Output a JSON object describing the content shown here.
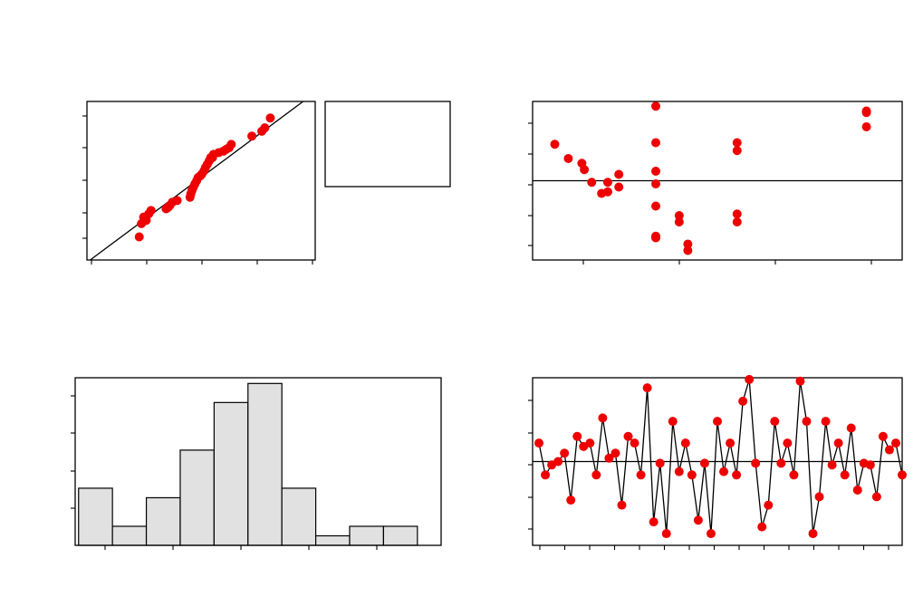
{
  "colors": {
    "point": "#ee0000",
    "bar": "#e1e1e1",
    "line": "#000000"
  },
  "chart_data": [
    {
      "id": "normal-probability",
      "type": "scatter",
      "title": "",
      "xlabel": "",
      "ylabel": "",
      "xlim": [
        -3.1,
        3.1
      ],
      "ylim": [
        -2.5,
        2.3
      ],
      "reference_line": {
        "slope": 0.83,
        "intercept": 0.0
      },
      "x": [
        -1.68,
        -1.62,
        -1.56,
        -1.49,
        -1.42,
        -1.36,
        -0.95,
        -0.89,
        -0.85,
        -0.78,
        -0.65,
        -0.3,
        -0.28,
        -0.25,
        -0.21,
        -0.17,
        -0.12,
        -0.08,
        -0.02,
        0.02,
        0.08,
        0.12,
        0.17,
        0.22,
        0.26,
        0.31,
        0.34,
        0.48,
        0.61,
        0.68,
        0.76,
        0.82,
        1.38,
        1.65,
        1.73,
        1.88
      ],
      "y": [
        -1.8,
        -1.4,
        -1.2,
        -1.3,
        -1.1,
        -1.0,
        -0.95,
        -0.9,
        -0.85,
        -0.75,
        -0.7,
        -0.6,
        -0.5,
        -0.4,
        -0.3,
        -0.2,
        -0.1,
        0.0,
        0.05,
        0.1,
        0.2,
        0.3,
        0.4,
        0.5,
        0.6,
        0.6,
        0.7,
        0.75,
        0.8,
        0.85,
        0.9,
        1.0,
        1.25,
        1.4,
        1.5,
        1.8
      ],
      "note_box": true
    },
    {
      "id": "residuals-vs-fit",
      "type": "scatter",
      "title": "",
      "xlabel": "",
      "ylabel": "",
      "xlim": [
        0,
        15
      ],
      "ylim": [
        -2.5,
        2.5
      ],
      "reference_line": {
        "y": 0
      },
      "x": [
        0.9,
        1.45,
        2.0,
        2.1,
        2.4,
        2.8,
        3.05,
        3.05,
        3.5,
        3.5,
        5.0,
        5.0,
        5.0,
        5.0,
        5.0,
        5.0,
        5.0,
        5.95,
        5.95,
        6.3,
        6.3,
        8.3,
        8.3,
        8.3,
        8.3,
        13.55,
        13.55,
        13.55
      ],
      "y": [
        1.15,
        0.7,
        0.55,
        0.35,
        -0.05,
        -0.4,
        -0.05,
        -0.35,
        0.2,
        -0.2,
        2.35,
        1.2,
        0.3,
        -0.1,
        -0.8,
        -1.8,
        -1.75,
        -1.1,
        -1.3,
        -2.0,
        -2.2,
        1.2,
        0.95,
        -1.05,
        -1.3,
        2.2,
        2.15,
        1.7
      ],
      "note_box": false
    },
    {
      "id": "histogram",
      "type": "bar",
      "title": "",
      "xlabel": "",
      "ylabel": "",
      "xlim": [
        -1.8,
        3.6
      ],
      "ylim": [
        0,
        8.8
      ],
      "bin_start": -1.75,
      "bin_width": 0.5,
      "values": [
        3,
        1,
        2.5,
        5,
        7.5,
        8.5,
        3,
        0.5,
        1,
        1
      ]
    },
    {
      "id": "residuals-vs-order",
      "type": "line",
      "title": "",
      "xlabel": "",
      "ylabel": "",
      "xlim": [
        0,
        58
      ],
      "ylim": [
        -2.5,
        2.5
      ],
      "reference_line": {
        "y": 0
      },
      "x": [
        1,
        2,
        3,
        4,
        5,
        6,
        7,
        8,
        9,
        10,
        11,
        12,
        13,
        14,
        15,
        16,
        17,
        18,
        19,
        20,
        21,
        22,
        23,
        24,
        25,
        26,
        27,
        28,
        29,
        30,
        31,
        32,
        33,
        34,
        35,
        36,
        37,
        38,
        39,
        40,
        41,
        42,
        43,
        44,
        45,
        46,
        47,
        48,
        49,
        50,
        51,
        52,
        53,
        54,
        55,
        56,
        57,
        58
      ],
      "y": [
        0.55,
        -0.4,
        -0.1,
        0.0,
        0.25,
        -1.15,
        0.75,
        0.45,
        0.55,
        -0.4,
        1.3,
        0.1,
        0.25,
        -1.3,
        0.75,
        0.55,
        -0.4,
        2.2,
        -1.8,
        -0.05,
        -2.15,
        1.2,
        -0.3,
        0.55,
        -0.4,
        -1.75,
        -0.05,
        -2.15,
        1.2,
        -0.3,
        0.55,
        -0.4,
        1.8,
        2.45,
        -0.05,
        -1.95,
        -1.3,
        1.2,
        -0.05,
        0.55,
        -0.4,
        2.4,
        1.2,
        -2.15,
        -1.05,
        1.2,
        -0.1,
        0.55,
        -0.4,
        1.0,
        -0.85,
        -0.05,
        -0.1,
        -1.05,
        0.75,
        0.35,
        0.55,
        -0.4
      ],
      "note_box": false
    }
  ]
}
